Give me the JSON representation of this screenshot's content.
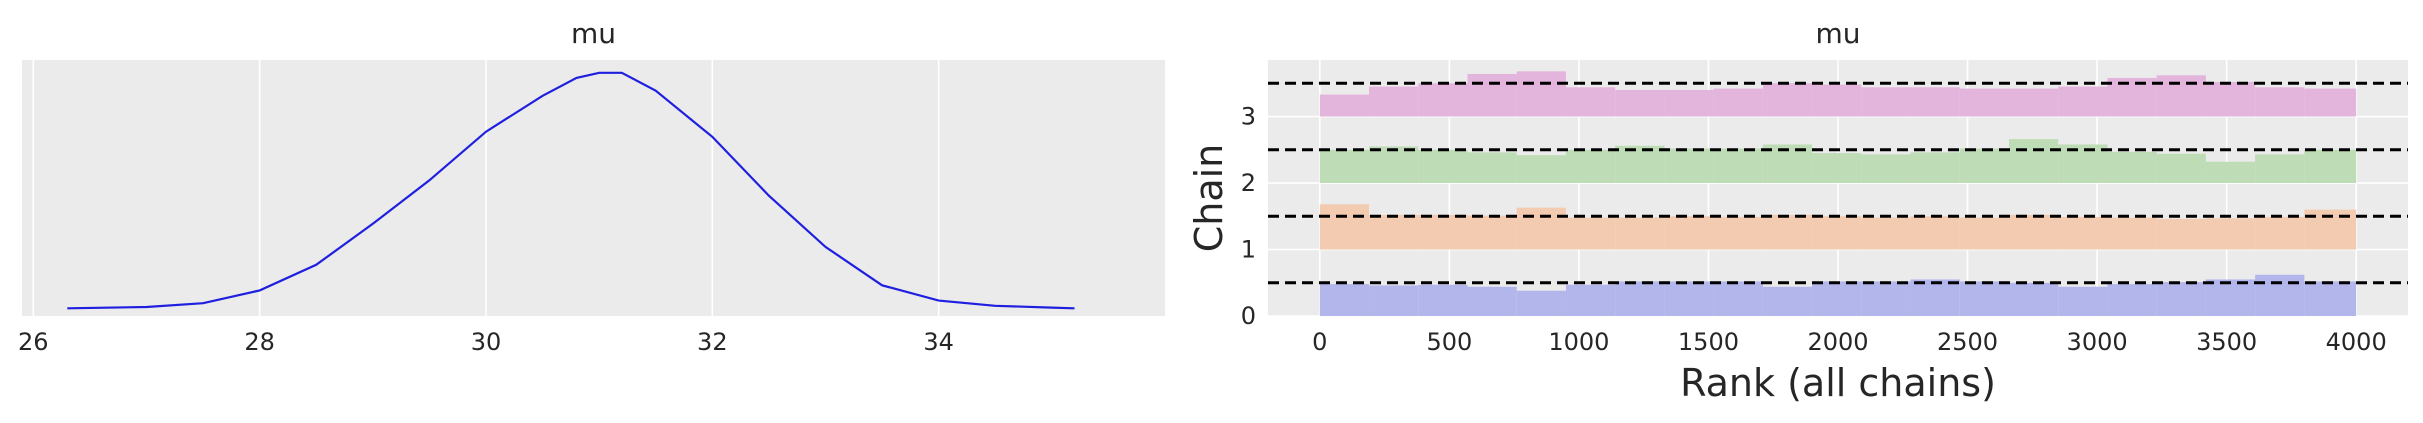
{
  "colors": {
    "panel_bg": "#ebebeb",
    "grid": "#ffffff",
    "kde_line": "#1f1fe0",
    "chain_colors": [
      "#b3b6ea",
      "#f3cbb0",
      "#bedcb6",
      "#e3b4dc"
    ],
    "ref_line": "#000000"
  },
  "chart_data": [
    {
      "type": "line",
      "title": "mu",
      "xlabel": "",
      "ylabel": "",
      "xlim": [
        25.9,
        36.0
      ],
      "ylim": [
        0,
        1
      ],
      "xticks": [
        26,
        28,
        30,
        32,
        34
      ],
      "xtick_labels": [
        "26",
        "28",
        "30",
        "32",
        "34"
      ],
      "grid": true,
      "series": [
        {
          "x": [
            26.3,
            27.0,
            27.5,
            28.0,
            28.5,
            29.0,
            29.5,
            30.0,
            30.5,
            30.8,
            31.0,
            31.2,
            31.5,
            32.0,
            32.5,
            33.0,
            33.5,
            34.0,
            34.5,
            35.0,
            35.2
          ],
          "y": [
            0.03,
            0.035,
            0.05,
            0.1,
            0.2,
            0.36,
            0.53,
            0.72,
            0.86,
            0.93,
            0.95,
            0.95,
            0.88,
            0.7,
            0.47,
            0.27,
            0.12,
            0.06,
            0.04,
            0.033,
            0.03
          ]
        }
      ]
    },
    {
      "type": "bar",
      "title": "mu",
      "xlabel": "Rank (all chains)",
      "ylabel": "Chain",
      "xlim": [
        -200,
        4200
      ],
      "ylim": [
        0,
        3.85
      ],
      "xticks": [
        0,
        500,
        1000,
        1500,
        2000,
        2500,
        3000,
        3500,
        4000
      ],
      "xtick_labels": [
        "0",
        "500",
        "1000",
        "1500",
        "2000",
        "2500",
        "3000",
        "3500",
        "4000"
      ],
      "yticks": [
        0,
        1,
        2,
        3
      ],
      "ytick_labels": [
        "0",
        "1",
        "2",
        "3"
      ],
      "bin_edges": [
        0,
        190,
        380,
        570,
        760,
        950,
        1140,
        1330,
        1520,
        1710,
        1900,
        2090,
        2280,
        2470,
        2660,
        2850,
        3040,
        3230,
        3420,
        3610,
        3800,
        4000
      ],
      "reference_levels": [
        0.5,
        1.5,
        2.5,
        3.5
      ],
      "series": [
        {
          "name": "0",
          "baseline": 0,
          "values": [
            0.48,
            0.46,
            0.47,
            0.44,
            0.38,
            0.47,
            0.52,
            0.52,
            0.52,
            0.44,
            0.52,
            0.52,
            0.55,
            0.52,
            0.5,
            0.44,
            0.48,
            0.51,
            0.55,
            0.62,
            0.52
          ]
        },
        {
          "name": "1",
          "baseline": 1,
          "values": [
            0.68,
            0.52,
            0.52,
            0.51,
            0.63,
            0.48,
            0.48,
            0.5,
            0.49,
            0.52,
            0.5,
            0.48,
            0.5,
            0.48,
            0.52,
            0.49,
            0.48,
            0.46,
            0.47,
            0.49,
            0.6
          ]
        },
        {
          "name": "2",
          "baseline": 2,
          "values": [
            0.5,
            0.55,
            0.5,
            0.46,
            0.42,
            0.5,
            0.56,
            0.52,
            0.52,
            0.58,
            0.45,
            0.43,
            0.46,
            0.52,
            0.66,
            0.58,
            0.47,
            0.44,
            0.32,
            0.43,
            0.5
          ]
        },
        {
          "name": "3",
          "baseline": 3,
          "values": [
            0.33,
            0.45,
            0.5,
            0.64,
            0.68,
            0.44,
            0.4,
            0.4,
            0.42,
            0.5,
            0.48,
            0.44,
            0.44,
            0.42,
            0.42,
            0.45,
            0.58,
            0.62,
            0.52,
            0.44,
            0.42
          ]
        }
      ]
    }
  ]
}
